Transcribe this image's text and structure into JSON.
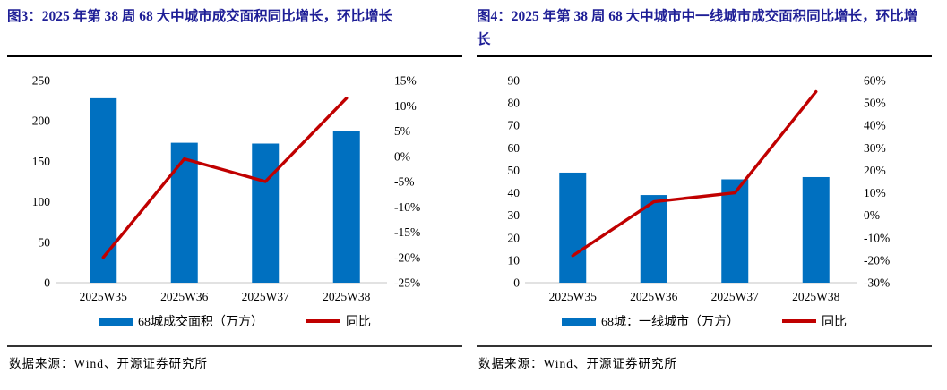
{
  "colors": {
    "bar": "#0070C0",
    "line": "#C00000",
    "title": "#1E1E96",
    "baseline": "#D9D9D9",
    "axis_text": "#000000"
  },
  "footer": {
    "source": "数据来源：Wind、开源证券研究所"
  },
  "chart_data": [
    {
      "type": "bar",
      "title": "图3：2025 年第 38 周 68 大中城市成交面积同比增长，环比增长",
      "categories": [
        "2025W35",
        "2025W36",
        "2025W37",
        "2025W38"
      ],
      "series": [
        {
          "name": "68城成交面积（万方）",
          "type": "bar",
          "axis": "left",
          "values": [
            228,
            173,
            172,
            188
          ]
        },
        {
          "name": "同比",
          "type": "line",
          "axis": "right",
          "values": [
            -20,
            -0.5,
            -5,
            11.5
          ]
        }
      ],
      "left_axis": {
        "min": 0,
        "max": 250,
        "step": 50,
        "suffix": ""
      },
      "right_axis": {
        "min": -25,
        "max": 15,
        "step": 5,
        "suffix": "%"
      },
      "grid": false,
      "legend_position": "bottom"
    },
    {
      "type": "bar",
      "title": "图4：2025 年第 38 周 68 大中城市中一线城市成交面积同比增长，环比增长",
      "categories": [
        "2025W35",
        "2025W36",
        "2025W37",
        "2025W38"
      ],
      "series": [
        {
          "name": "68城：一线城市（万方）",
          "type": "bar",
          "axis": "left",
          "values": [
            49,
            39,
            46,
            47
          ]
        },
        {
          "name": "同比",
          "type": "line",
          "axis": "right",
          "values": [
            -18,
            6,
            10,
            55
          ]
        }
      ],
      "left_axis": {
        "min": 0,
        "max": 90,
        "step": 10,
        "suffix": ""
      },
      "right_axis": {
        "min": -30,
        "max": 60,
        "step": 10,
        "suffix": "%"
      },
      "grid": false,
      "legend_position": "bottom"
    }
  ]
}
